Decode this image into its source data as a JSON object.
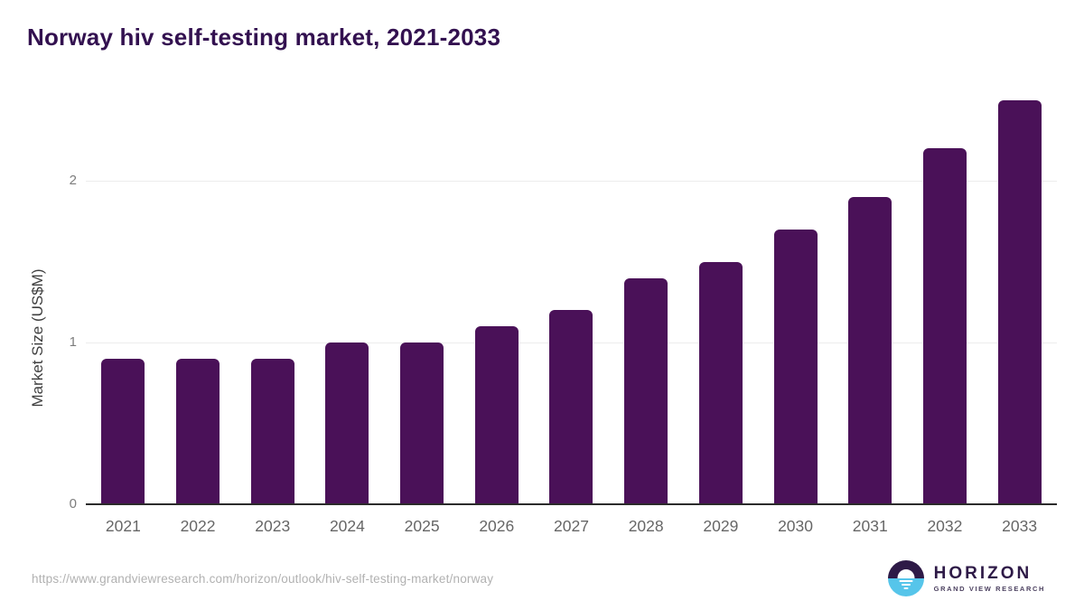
{
  "header": {
    "title": "Norway hiv self-testing market, 2021-2033"
  },
  "chart_data": {
    "type": "bar",
    "title": "Norway hiv self-testing market, 2021-2033",
    "categories": [
      "2021",
      "2022",
      "2023",
      "2024",
      "2025",
      "2026",
      "2027",
      "2028",
      "2029",
      "2030",
      "2031",
      "2032",
      "2033"
    ],
    "values": [
      0.9,
      0.9,
      0.9,
      1.0,
      1.0,
      1.1,
      1.2,
      1.4,
      1.5,
      1.7,
      1.9,
      2.2,
      2.5
    ],
    "xlabel": "",
    "ylabel": "Market Size (US$M)",
    "yticks": [
      0,
      1,
      2
    ],
    "ylim": [
      0,
      2.56
    ],
    "grid": "horizontal-only",
    "legend": "none",
    "bar_color": "#4a1158"
  },
  "colors": {
    "title": "#331150",
    "bar": "#4a1158",
    "gridline": "#ececec",
    "axis_line": "#2b2b2b",
    "tick_text": "#7d7d7d",
    "logo_purple": "#2e1a47",
    "logo_blue": "#56c5ea"
  },
  "footer": {
    "source_url": "https://www.grandviewresearch.com/horizon/outlook/hiv-self-testing-market/norway",
    "logo": {
      "brand": "HORIZON",
      "subtext": "GRAND VIEW RESEARCH"
    }
  }
}
